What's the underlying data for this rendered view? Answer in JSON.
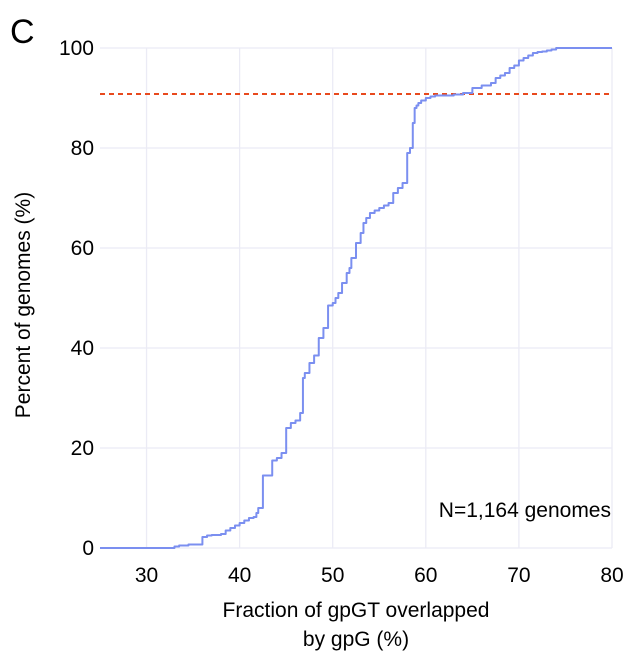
{
  "chart_data": {
    "type": "line",
    "panel_label": "C",
    "xlabel": [
      "Fraction of gpGT overlapped",
      "by gpG (%)"
    ],
    "ylabel": "Percent of genomes (%)",
    "xlim": [
      25,
      80
    ],
    "ylim": [
      0,
      100
    ],
    "xticks": [
      "30",
      "40",
      "50",
      "60",
      "70",
      "80"
    ],
    "yticks": [
      "0",
      "20",
      "40",
      "60",
      "80",
      "100"
    ],
    "grid": true,
    "annotation": "N=1,164 genomes",
    "reference_line": {
      "y": 90.8,
      "style": "dashed",
      "color": "#e8491d"
    },
    "series": [
      {
        "color": "#7b8ff0",
        "step": true,
        "x": [
          25,
          33,
          33.5,
          34.5,
          36,
          36.5,
          37,
          38,
          38.5,
          39,
          39.5,
          40,
          40.5,
          41,
          41.5,
          41.8,
          42,
          42.5,
          43.5,
          44,
          44.5,
          45,
          45.5,
          46,
          46.5,
          46.8,
          47,
          47.5,
          48,
          48.5,
          49,
          49.5,
          50,
          50.3,
          50.6,
          51,
          51.5,
          51.8,
          52,
          52.5,
          53,
          53.3,
          53.6,
          54,
          54.5,
          55,
          55.5,
          56,
          56.5,
          57,
          57.5,
          58,
          58.3,
          58.6,
          58.8,
          59,
          59.2,
          59.5,
          60,
          60.5,
          61,
          62,
          63,
          64,
          65,
          66,
          67,
          67.5,
          68,
          68.5,
          69,
          69.5,
          70,
          70.5,
          71,
          71.5,
          72,
          72.5,
          73,
          73.5,
          74,
          80
        ],
        "y": [
          0,
          0.3,
          0.5,
          0.7,
          2.2,
          2.5,
          2.6,
          2.8,
          3.5,
          4,
          4.5,
          5,
          5.5,
          6,
          6.2,
          7,
          8,
          14.5,
          17.5,
          18,
          19,
          24,
          25,
          25.5,
          27,
          34,
          35,
          37,
          38.5,
          42,
          44,
          48.5,
          49,
          50,
          51,
          53,
          55,
          56,
          58,
          61,
          63,
          65,
          66,
          67,
          67.5,
          68,
          68.5,
          69,
          71,
          72,
          73,
          79,
          80,
          85,
          88,
          88.5,
          89,
          89.5,
          90,
          90.3,
          90.5,
          90.5,
          90.7,
          91,
          92,
          92.5,
          93,
          94,
          94.5,
          95,
          96,
          96.5,
          97.5,
          98,
          98.5,
          99,
          99.2,
          99.3,
          99.5,
          99.7,
          100,
          100
        ]
      }
    ]
  }
}
